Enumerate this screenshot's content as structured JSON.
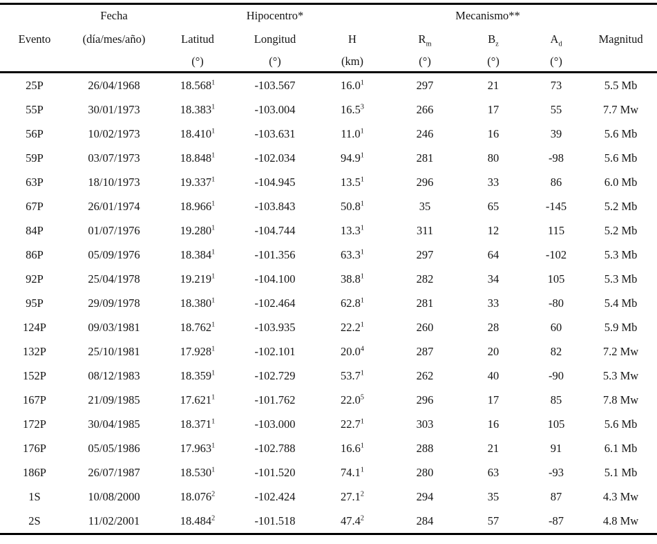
{
  "table": {
    "header": {
      "evento": "Evento",
      "fecha_line1": "Fecha",
      "fecha_line2": "(día/mes/año)",
      "hipocentro": "Hipocentro*",
      "mecanismo": "Mecanismo**",
      "latitud": "Latitud",
      "longitud": "Longitud",
      "h": "H",
      "h_unit": "(km)",
      "deg_unit": "(°)",
      "rm_base": "R",
      "rm_sub": "m",
      "bz_base": "B",
      "bz_sub": "z",
      "ad_base": "A",
      "ad_sub": "d",
      "magnitud": "Magnitud"
    },
    "rows": [
      {
        "evento": "25P",
        "fecha": "26/04/1968",
        "lat": "18.568",
        "lat_sup": "1",
        "lon": "-103.567",
        "h": "16.0",
        "h_sup": "1",
        "rm": "297",
        "bz": "21",
        "ad": "73",
        "mag": "5.5 Mb"
      },
      {
        "evento": "55P",
        "fecha": "30/01/1973",
        "lat": "18.383",
        "lat_sup": "1",
        "lon": "-103.004",
        "h": "16.5",
        "h_sup": "3",
        "rm": "266",
        "bz": "17",
        "ad": "55",
        "mag": "7.7 Mw"
      },
      {
        "evento": "56P",
        "fecha": "10/02/1973",
        "lat": "18.410",
        "lat_sup": "1",
        "lon": "-103.631",
        "h": "11.0",
        "h_sup": "1",
        "rm": "246",
        "bz": "16",
        "ad": "39",
        "mag": "5.6 Mb"
      },
      {
        "evento": "59P",
        "fecha": "03/07/1973",
        "lat": "18.848",
        "lat_sup": "1",
        "lon": "-102.034",
        "h": "94.9",
        "h_sup": "1",
        "rm": "281",
        "bz": "80",
        "ad": "-98",
        "mag": "5.6 Mb"
      },
      {
        "evento": "63P",
        "fecha": "18/10/1973",
        "lat": "19.337",
        "lat_sup": "1",
        "lon": "-104.945",
        "h": "13.5",
        "h_sup": "1",
        "rm": "296",
        "bz": "33",
        "ad": "86",
        "mag": "6.0 Mb"
      },
      {
        "evento": "67P",
        "fecha": "26/01/1974",
        "lat": "18.966",
        "lat_sup": "1",
        "lon": "-103.843",
        "h": "50.8",
        "h_sup": "1",
        "rm": "35",
        "bz": "65",
        "ad": "-145",
        "mag": "5.2 Mb"
      },
      {
        "evento": "84P",
        "fecha": "01/07/1976",
        "lat": "19.280",
        "lat_sup": "1",
        "lon": "-104.744",
        "h": "13.3",
        "h_sup": "1",
        "rm": "311",
        "bz": "12",
        "ad": "115",
        "mag": "5.2 Mb"
      },
      {
        "evento": "86P",
        "fecha": "05/09/1976",
        "lat": "18.384",
        "lat_sup": "1",
        "lon": "-101.356",
        "h": "63.3",
        "h_sup": "1",
        "rm": "297",
        "bz": "64",
        "ad": "-102",
        "mag": "5.3 Mb"
      },
      {
        "evento": "92P",
        "fecha": "25/04/1978",
        "lat": "19.219",
        "lat_sup": "1",
        "lon": "-104.100",
        "h": "38.8",
        "h_sup": "1",
        "rm": "282",
        "bz": "34",
        "ad": "105",
        "mag": "5.3 Mb"
      },
      {
        "evento": "95P",
        "fecha": "29/09/1978",
        "lat": "18.380",
        "lat_sup": "1",
        "lon": "-102.464",
        "h": "62.8",
        "h_sup": "1",
        "rm": "281",
        "bz": "33",
        "ad": "-80",
        "mag": "5.4 Mb"
      },
      {
        "evento": "124P",
        "fecha": "09/03/1981",
        "lat": "18.762",
        "lat_sup": "1",
        "lon": "-103.935",
        "h": "22.2",
        "h_sup": "1",
        "rm": "260",
        "bz": "28",
        "ad": "60",
        "mag": "5.9 Mb"
      },
      {
        "evento": "132P",
        "fecha": "25/10/1981",
        "lat": "17.928",
        "lat_sup": "1",
        "lon": "-102.101",
        "h": "20.0",
        "h_sup": "4",
        "rm": "287",
        "bz": "20",
        "ad": "82",
        "mag": "7.2 Mw"
      },
      {
        "evento": "152P",
        "fecha": "08/12/1983",
        "lat": "18.359",
        "lat_sup": "1",
        "lon": "-102.729",
        "h": "53.7",
        "h_sup": "1",
        "rm": "262",
        "bz": "40",
        "ad": "-90",
        "mag": "5.3 Mw"
      },
      {
        "evento": "167P",
        "fecha": "21/09/1985",
        "lat": "17.621",
        "lat_sup": "1",
        "lon": "-101.762",
        "h": "22.0",
        "h_sup": "5",
        "rm": "296",
        "bz": "17",
        "ad": "85",
        "mag": "7.8 Mw"
      },
      {
        "evento": "172P",
        "fecha": "30/04/1985",
        "lat": "18.371",
        "lat_sup": "1",
        "lon": "-103.000",
        "h": "22.7",
        "h_sup": "1",
        "rm": "303",
        "bz": "16",
        "ad": "105",
        "mag": "5.6 Mb"
      },
      {
        "evento": "176P",
        "fecha": "05/05/1986",
        "lat": "17.963",
        "lat_sup": "1",
        "lon": "-102.788",
        "h": "16.6",
        "h_sup": "1",
        "rm": "288",
        "bz": "21",
        "ad": "91",
        "mag": "6.1 Mb"
      },
      {
        "evento": "186P",
        "fecha": "26/07/1987",
        "lat": "18.530",
        "lat_sup": "1",
        "lon": "-101.520",
        "h": "74.1",
        "h_sup": "1",
        "rm": "280",
        "bz": "63",
        "ad": "-93",
        "mag": "5.1 Mb"
      },
      {
        "evento": "1S",
        "fecha": "10/08/2000",
        "lat": "18.076",
        "lat_sup": "2",
        "lon": "-102.424",
        "h": "27.1",
        "h_sup": "2",
        "rm": "294",
        "bz": "35",
        "ad": "87",
        "mag": "4.3 Mw"
      },
      {
        "evento": "2S",
        "fecha": "11/02/2001",
        "lat": "18.484",
        "lat_sup": "2",
        "lon": "-101.518",
        "h": "47.4",
        "h_sup": "2",
        "rm": "284",
        "bz": "57",
        "ad": "-87",
        "mag": "4.8 Mw"
      }
    ]
  }
}
